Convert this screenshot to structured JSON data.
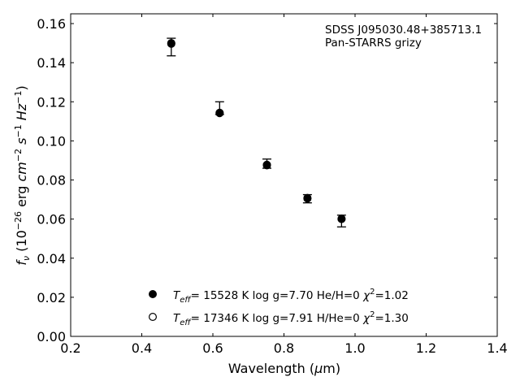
{
  "chart_data": {
    "type": "scatter",
    "annotation": [
      "SDSS J095030.48+385713.1",
      "Pan-STARRS grizy"
    ],
    "xlabel": "Wavelength (μm)",
    "ylabel": "f_ν (10^-26 erg cm^-2 s^-1 Hz^-1)",
    "xlim": [
      0.2,
      1.4
    ],
    "ylim": [
      0.0,
      0.165
    ],
    "xticks": [
      "0.2",
      "0.4",
      "0.6",
      "0.8",
      "1.0",
      "1.2",
      "1.4"
    ],
    "yticks": [
      "0.00",
      "0.02",
      "0.04",
      "0.06",
      "0.08",
      "0.10",
      "0.12",
      "0.14",
      "0.16"
    ],
    "grid": false,
    "legend_position": "bottom-left",
    "observed": {
      "x": [
        0.483,
        0.619,
        0.752,
        0.866,
        0.962
      ],
      "y": [
        0.15,
        0.1145,
        0.0877,
        0.0707,
        0.0601
      ],
      "y_err_low": [
        0.1435,
        0.1135,
        0.086,
        0.0683,
        0.056
      ],
      "y_err_high": [
        0.1525,
        0.12,
        0.0907,
        0.0725,
        0.062
      ]
    },
    "series": [
      {
        "marker": "filled-circle",
        "label": {
          "prefix": "T",
          "sub": "eff",
          "text1": "= 15528 K  log g=7.70  He/H=0  ",
          "chi": "χ",
          "sup": "2",
          "text2": "=1.02"
        },
        "x": [
          0.483,
          0.619,
          0.752,
          0.866,
          0.962
        ],
        "y": [
          0.1497,
          0.1142,
          0.0875,
          0.0705,
          0.06
        ]
      },
      {
        "marker": "open-circle",
        "label": {
          "prefix": "T",
          "sub": "eff",
          "text1": "= 17346 K  log g=7.91  H/He=0  ",
          "chi": "χ",
          "sup": "2",
          "text2": "=1.30"
        },
        "x": [
          0.483,
          0.619,
          0.752,
          0.866,
          0.962
        ],
        "y": [
          0.15,
          0.1144,
          0.0878,
          0.0708,
          0.0602
        ]
      }
    ]
  }
}
